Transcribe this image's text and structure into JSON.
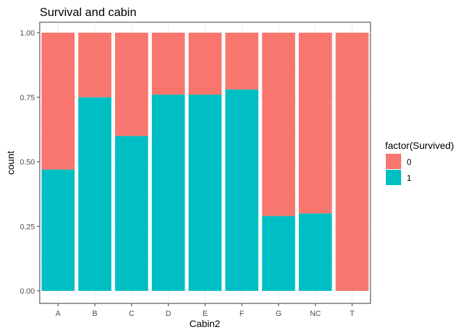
{
  "chart_data": {
    "type": "bar",
    "stacked": true,
    "title": "Survival and cabin",
    "xlabel": "Cabin2",
    "ylabel": "count",
    "categories": [
      "A",
      "B",
      "C",
      "D",
      "E",
      "F",
      "G",
      "NC",
      "T"
    ],
    "series": [
      {
        "name": "0",
        "color": "#F8766D",
        "values": [
          0.53,
          0.25,
          0.4,
          0.24,
          0.24,
          0.22,
          0.71,
          0.7,
          1.0
        ]
      },
      {
        "name": "1",
        "color": "#00BFC4",
        "values": [
          0.47,
          0.75,
          0.6,
          0.76,
          0.76,
          0.78,
          0.29,
          0.3,
          0.0
        ]
      }
    ],
    "ylim": [
      0,
      1
    ],
    "yticks": [
      "0.00",
      "0.25",
      "0.50",
      "0.75",
      "1.00"
    ],
    "legend": {
      "title": "factor(Survived)",
      "placement": "right"
    },
    "grid": true
  }
}
